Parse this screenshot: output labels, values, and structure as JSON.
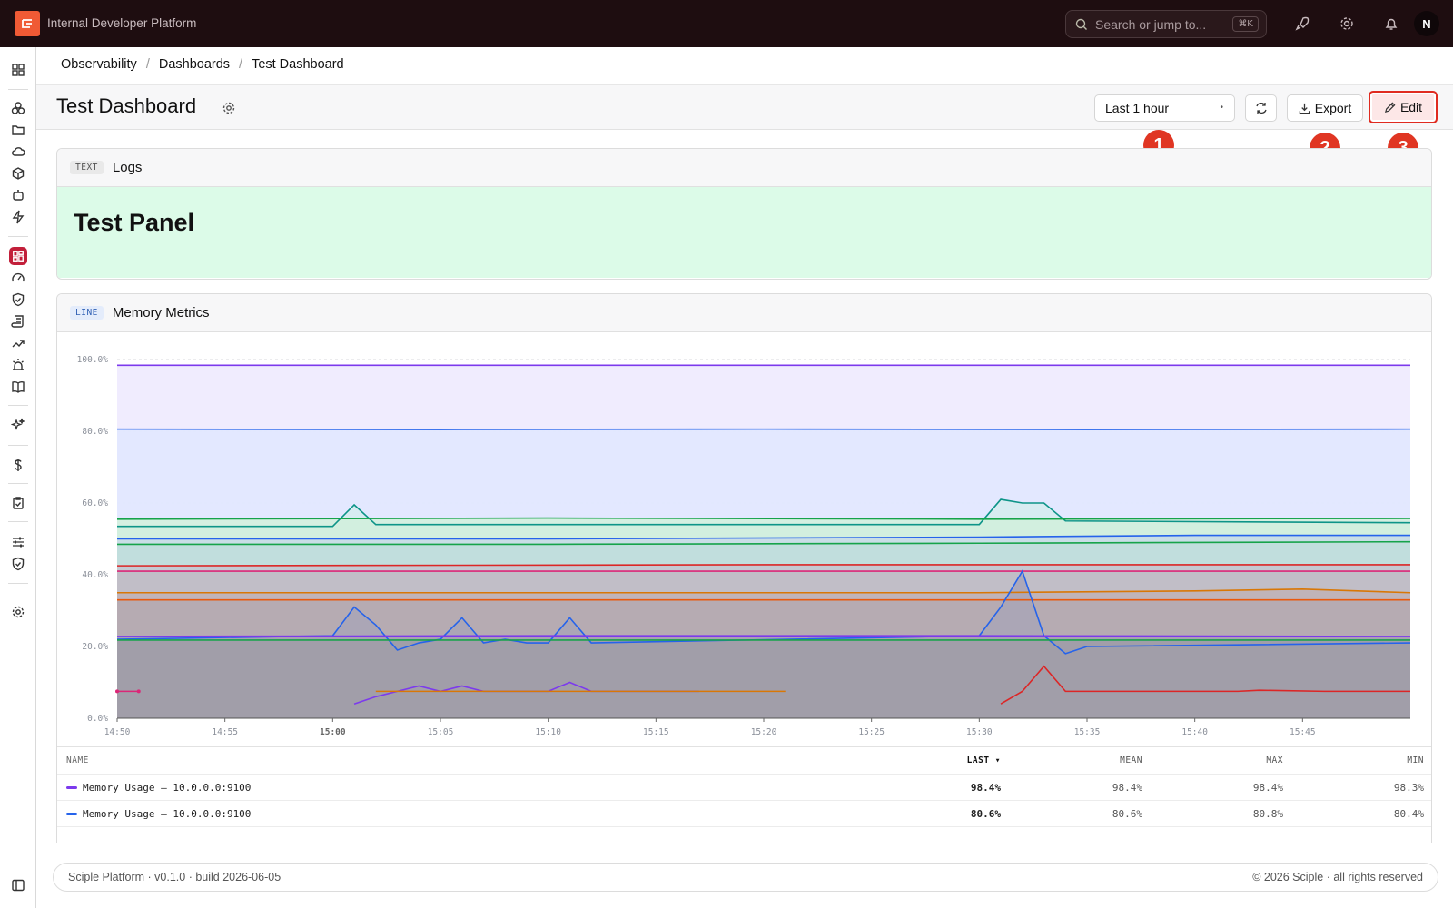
{
  "app": {
    "title": "Internal Developer Platform",
    "avatar_initial": "N"
  },
  "search": {
    "placeholder": "Search or jump to...",
    "shortcut": "⌘K"
  },
  "breadcrumbs": [
    "Observability",
    "Dashboards",
    "Test Dashboard"
  ],
  "page": {
    "title": "Test Dashboard"
  },
  "toolbar": {
    "time_range": "Last 1 hour",
    "export_label": "Export",
    "edit_label": "Edit"
  },
  "markers": [
    "1",
    "2",
    "3"
  ],
  "panels": {
    "text": {
      "tag": "TEXT",
      "title": "Logs",
      "heading": "Test Panel"
    },
    "line": {
      "tag": "LINE",
      "title": "Memory Metrics"
    }
  },
  "legend": {
    "headers": {
      "name": "NAME",
      "last": "LAST ▾",
      "mean": "MEAN",
      "max": "MAX",
      "min": "MIN"
    },
    "rows": [
      {
        "name": "Memory Usage — 10.0.0.0:9100",
        "color": "#7c3aed",
        "last": "98.4%",
        "mean": "98.4%",
        "max": "98.4%",
        "min": "98.3%"
      },
      {
        "name": "Memory Usage — 10.0.0.0:9100",
        "color": "#2563eb",
        "last": "80.6%",
        "mean": "80.6%",
        "max": "80.8%",
        "min": "80.4%"
      }
    ]
  },
  "footer": {
    "left": "Sciple Platform · v0.1.0 · build 2026-06-05",
    "right": "© 2026 Sciple · all rights reserved"
  },
  "chart_data": {
    "type": "area",
    "x_ticks": [
      "14:50",
      "14:55",
      "15:00",
      "15:05",
      "15:10",
      "15:15",
      "15:20",
      "15:25",
      "15:30",
      "15:35",
      "15:40",
      "15:45"
    ],
    "y_ticks": [
      "0.0%",
      "20.0%",
      "40.0%",
      "60.0%",
      "80.0%",
      "100.0%"
    ],
    "ylim": [
      0,
      100
    ],
    "xlim_minutes": [
      0,
      60
    ],
    "series": [
      {
        "color": "#7c3aed",
        "fill": "#ede9fe",
        "points": [
          [
            0,
            98.4
          ],
          [
            60,
            98.4
          ]
        ]
      },
      {
        "color": "#2563eb",
        "fill": "#e0e7ff",
        "points": [
          [
            0,
            80.6
          ],
          [
            15,
            80.5
          ],
          [
            30,
            80.6
          ],
          [
            45,
            80.5
          ],
          [
            60,
            80.6
          ]
        ]
      },
      {
        "color": "#0d9488",
        "fill": "#d5ecee",
        "points": [
          [
            0,
            53.5
          ],
          [
            10,
            53.5
          ],
          [
            11,
            59.5
          ],
          [
            12,
            54
          ],
          [
            40,
            54
          ],
          [
            41,
            61
          ],
          [
            42,
            60
          ],
          [
            43,
            60
          ],
          [
            44,
            55
          ],
          [
            60,
            54.5
          ]
        ]
      },
      {
        "color": "#16a34a",
        "fill": "#d1f0dc",
        "points": [
          [
            0,
            55.5
          ],
          [
            20,
            55.8
          ],
          [
            40,
            55.5
          ],
          [
            60,
            55.7
          ]
        ]
      },
      {
        "color": "#2563eb",
        "fill": "#c8dbe8",
        "points": [
          [
            0,
            50
          ],
          [
            20,
            50
          ],
          [
            40,
            50.5
          ],
          [
            50,
            51
          ],
          [
            60,
            51
          ]
        ]
      },
      {
        "color": "#16a34a",
        "fill": "#c0dedb",
        "points": [
          [
            0,
            48.5
          ],
          [
            20,
            48.5
          ],
          [
            40,
            48.8
          ],
          [
            60,
            49.2
          ]
        ]
      },
      {
        "color": "#dc2626",
        "fill": "#c6c5d0",
        "points": [
          [
            0,
            42.5
          ],
          [
            30,
            42.8
          ],
          [
            60,
            42.8
          ]
        ]
      },
      {
        "color": "#db2777",
        "fill": "#c0bcc6",
        "points": [
          [
            0,
            41
          ],
          [
            60,
            41
          ]
        ]
      },
      {
        "color": "#d97706",
        "fill": "#bfb3b6",
        "points": [
          [
            0,
            35
          ],
          [
            20,
            35
          ],
          [
            40,
            35
          ],
          [
            50,
            35.5
          ],
          [
            55,
            36
          ],
          [
            60,
            35
          ]
        ]
      },
      {
        "color": "#ea580c",
        "fill": "#b4a9b0",
        "points": [
          [
            0,
            33
          ],
          [
            60,
            33
          ]
        ]
      },
      {
        "color": "#2563eb",
        "fill": "#a9a4b6",
        "points": [
          [
            0,
            22
          ],
          [
            10,
            23
          ],
          [
            11,
            31
          ],
          [
            12,
            26
          ],
          [
            13,
            19
          ],
          [
            14,
            21
          ],
          [
            15,
            22
          ],
          [
            16,
            28
          ],
          [
            17,
            21
          ],
          [
            18,
            22
          ],
          [
            19,
            21
          ],
          [
            20,
            21
          ],
          [
            21,
            28
          ],
          [
            22,
            21
          ],
          [
            40,
            23
          ],
          [
            41,
            31
          ],
          [
            42,
            41
          ],
          [
            43,
            23
          ],
          [
            44,
            18
          ],
          [
            45,
            20
          ],
          [
            60,
            21
          ]
        ]
      },
      {
        "color": "#7c3aed",
        "fill": "#a49fb0",
        "points": [
          [
            0,
            22.8
          ],
          [
            20,
            23
          ],
          [
            40,
            23
          ],
          [
            60,
            22.8
          ]
        ]
      },
      {
        "color": "#16a34a",
        "fill": "#a09da8",
        "points": [
          [
            0,
            21.8
          ],
          [
            60,
            21.8
          ]
        ]
      },
      {
        "color": "#7c3aed",
        "fill": "none",
        "points": [
          [
            11,
            4
          ],
          [
            12,
            6
          ],
          [
            13,
            7.5
          ],
          [
            14,
            9
          ],
          [
            15,
            7.5
          ],
          [
            16,
            9
          ],
          [
            17,
            7.5
          ],
          [
            20,
            7.5
          ],
          [
            21,
            10
          ],
          [
            22,
            7.5
          ],
          [
            27,
            7.5
          ]
        ]
      },
      {
        "color": "#d97706",
        "fill": "none",
        "points": [
          [
            12,
            7.5
          ],
          [
            31,
            7.5
          ]
        ]
      },
      {
        "color": "#dc2626",
        "fill": "none",
        "points": [
          [
            41,
            4
          ],
          [
            42,
            7.5
          ],
          [
            43,
            14.5
          ],
          [
            44,
            7.5
          ],
          [
            52,
            7.5
          ],
          [
            53,
            7.8
          ],
          [
            56,
            7.5
          ],
          [
            60,
            7.5
          ]
        ]
      },
      {
        "color": "#db2777",
        "fill": "none",
        "points": [
          [
            0,
            7.5
          ],
          [
            1,
            7.5
          ]
        ]
      }
    ]
  }
}
